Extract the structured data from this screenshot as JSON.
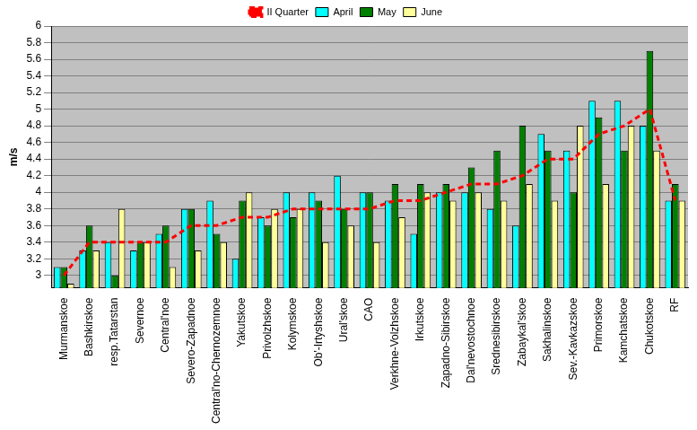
{
  "chart_data": {
    "type": "bar",
    "y_label": "m/s",
    "categories": [
      "Murmanskoe",
      "Bashkirskoe",
      "resp.Tatarstan",
      "Severnoe",
      "Central'noe",
      "Severo-Zapadnoe",
      "Central'no-Chernozemnoe",
      "Yakutskoe",
      "Privolzhskoe",
      "Kolymskoe",
      "Ob'-Irtyshskoe",
      "Ural'skoe",
      "CAO",
      "Verkhne-Volzhskoe",
      "Irkutskoe",
      "Zapadno-Sibirskoe",
      "Dal'nevostochnoe",
      "Srednesibirskoe",
      "Zabaykal'skoe",
      "Sakhalinskoe",
      "Sev.-Kavkazskoe",
      "Primorskoe",
      "Kamchatskoe",
      "Chukotskoe",
      "RF"
    ],
    "series": [
      {
        "name": "April",
        "color": "#00ffff",
        "values": [
          3.1,
          3.3,
          3.4,
          3.3,
          3.5,
          3.8,
          3.9,
          3.2,
          3.7,
          4.0,
          4.0,
          4.2,
          4.0,
          3.9,
          3.5,
          4.0,
          4.0,
          3.8,
          3.6,
          4.7,
          4.5,
          5.1,
          5.1,
          4.8,
          3.9
        ]
      },
      {
        "name": "May",
        "color": "#008000",
        "values": [
          3.1,
          3.6,
          3.0,
          3.4,
          3.6,
          3.8,
          3.5,
          3.9,
          3.6,
          3.7,
          3.9,
          3.8,
          4.0,
          4.1,
          4.1,
          4.1,
          4.3,
          4.5,
          4.8,
          4.5,
          4.0,
          4.9,
          4.5,
          5.7,
          4.1
        ]
      },
      {
        "name": "June",
        "color": "#ffff99",
        "values": [
          2.9,
          3.3,
          3.8,
          3.4,
          3.1,
          3.3,
          3.4,
          4.0,
          3.8,
          3.8,
          3.4,
          3.6,
          3.4,
          3.7,
          4.0,
          3.9,
          4.0,
          3.9,
          4.1,
          3.9,
          4.8,
          4.1,
          4.8,
          4.5,
          3.9
        ]
      },
      {
        "name": "II Quarter",
        "type": "line",
        "color": "#ff0000",
        "line_style": "dashed",
        "values": [
          3.0,
          3.4,
          3.4,
          3.4,
          3.4,
          3.6,
          3.6,
          3.7,
          3.7,
          3.8,
          3.8,
          3.8,
          3.8,
          3.9,
          3.9,
          4.0,
          4.1,
          4.1,
          4.2,
          4.4,
          4.4,
          4.7,
          4.8,
          5.0,
          3.9
        ]
      }
    ],
    "ylim": [
      2.85,
      6
    ],
    "yticks": [
      3,
      3.2,
      3.4,
      3.6,
      3.8,
      4,
      4.2,
      4.4,
      4.6,
      4.8,
      5,
      5.2,
      5.4,
      5.6,
      5.8,
      6
    ],
    "grid": true,
    "legend": "top"
  }
}
